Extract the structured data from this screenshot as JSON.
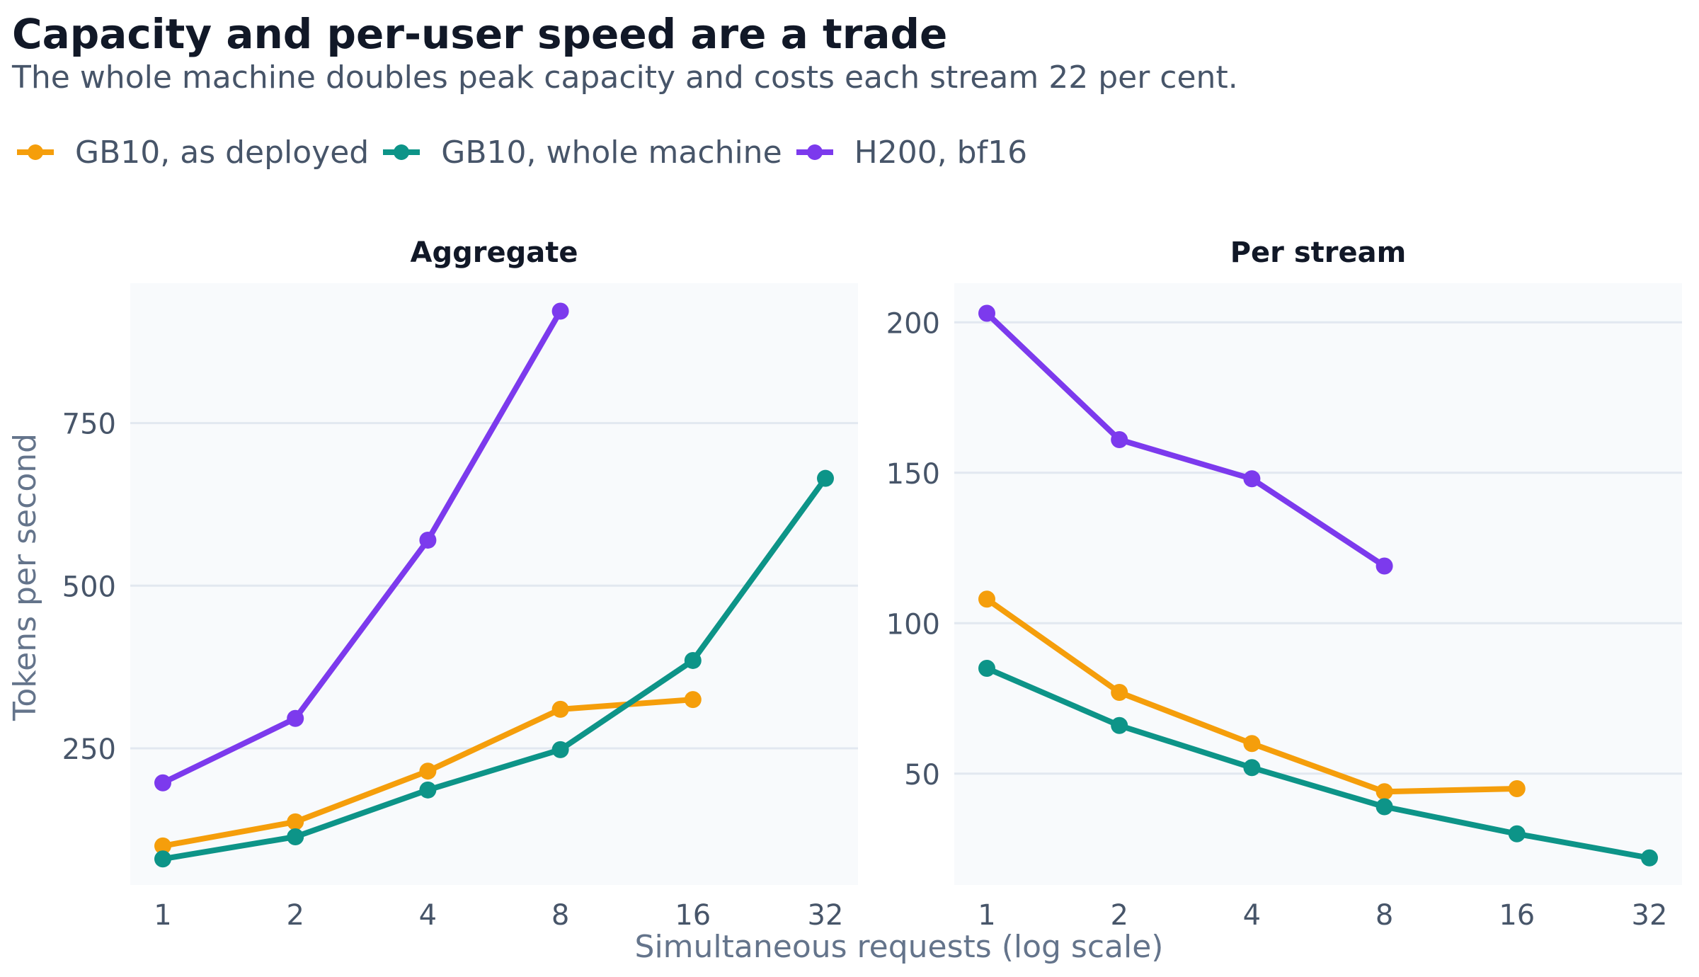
{
  "title": "Capacity and per-user speed are a trade",
  "subtitle": "The whole machine doubles peak capacity and costs each stream 22 per cent.",
  "legend": [
    {
      "label": "GB10, as deployed",
      "color": "#f59e0b"
    },
    {
      "label": "GB10, whole machine",
      "color": "#0d9488"
    },
    {
      "label": "H200, bf16",
      "color": "#7c3aed"
    }
  ],
  "chart_data": [
    {
      "type": "line",
      "title": "Aggregate",
      "xlabel": "Simultaneous requests (log scale)",
      "ylabel": "Tokens per second",
      "x_scale": "log2",
      "x_ticks": [
        1,
        2,
        4,
        8,
        16,
        32
      ],
      "y_ticks": [
        250,
        500,
        750
      ],
      "ylim": [
        40,
        965
      ],
      "grid": true,
      "series": [
        {
          "name": "GB10, as deployed",
          "color": "#f59e0b",
          "x": [
            1,
            2,
            4,
            8,
            16
          ],
          "y": [
            100,
            137,
            215,
            310,
            325
          ]
        },
        {
          "name": "GB10, whole machine",
          "color": "#0d9488",
          "x": [
            1,
            2,
            4,
            8,
            16,
            32
          ],
          "y": [
            80,
            114,
            186,
            248,
            385,
            665
          ]
        },
        {
          "name": "H200, bf16",
          "color": "#7c3aed",
          "x": [
            1,
            2,
            4,
            8
          ],
          "y": [
            197,
            296,
            570,
            922
          ]
        }
      ]
    },
    {
      "type": "line",
      "title": "Per stream",
      "xlabel": "Simultaneous requests (log scale)",
      "ylabel": "Tokens per second",
      "x_scale": "log2",
      "x_ticks": [
        1,
        2,
        4,
        8,
        16,
        32
      ],
      "y_ticks": [
        50,
        100,
        150,
        200
      ],
      "ylim": [
        13,
        213
      ],
      "grid": true,
      "series": [
        {
          "name": "GB10, as deployed",
          "color": "#f59e0b",
          "x": [
            1,
            2,
            4,
            8,
            16
          ],
          "y": [
            108,
            77,
            60,
            44,
            45
          ]
        },
        {
          "name": "GB10, whole machine",
          "color": "#0d9488",
          "x": [
            1,
            2,
            4,
            8,
            16,
            32
          ],
          "y": [
            85,
            66,
            52,
            39,
            30,
            22
          ]
        },
        {
          "name": "H200, bf16",
          "color": "#7c3aed",
          "x": [
            1,
            2,
            4,
            8
          ],
          "y": [
            203,
            161,
            148,
            119
          ]
        }
      ]
    }
  ]
}
